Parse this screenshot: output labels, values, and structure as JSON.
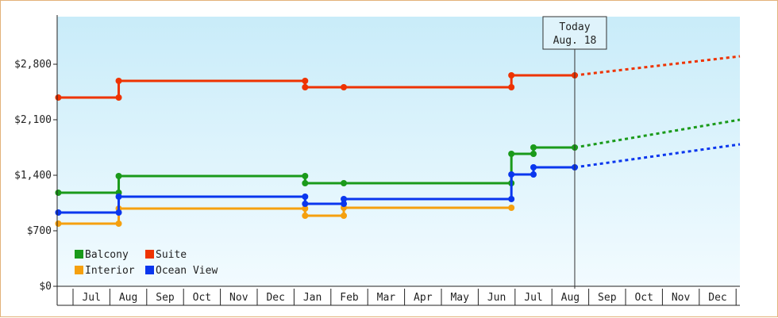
{
  "chart_data": {
    "type": "line",
    "ylim": [
      0,
      3400
    ],
    "y_ticks": [
      {
        "value": 0,
        "label": "$0"
      },
      {
        "value": 700,
        "label": "$700"
      },
      {
        "value": 1400,
        "label": "$1,400"
      },
      {
        "value": 2100,
        "label": "$2,100"
      },
      {
        "value": 2800,
        "label": "$2,800"
      }
    ],
    "month_labels": [
      "Jul",
      "Aug",
      "Sep",
      "Oct",
      "Nov",
      "Dec",
      "Jan",
      "Feb",
      "Mar",
      "Apr",
      "May",
      "Jun",
      "Jul",
      "Aug",
      "Sep",
      "Oct",
      "Nov",
      "Dec"
    ],
    "x_range": [
      0,
      18
    ],
    "today": {
      "x": 13.62,
      "line1": "Today",
      "line2": "Aug. 18"
    },
    "legend": {
      "position": "bottom-left"
    },
    "series": [
      {
        "name": "Balcony",
        "color": "#1a9a1a",
        "points": [
          [
            -0.4,
            1180
          ],
          [
            1.24,
            1180
          ],
          [
            1.24,
            1390
          ],
          [
            6.3,
            1390
          ],
          [
            6.3,
            1300
          ],
          [
            7.35,
            1300
          ],
          [
            11.9,
            1300
          ],
          [
            11.9,
            1670
          ],
          [
            12.5,
            1670
          ],
          [
            12.5,
            1750
          ],
          [
            13.62,
            1750
          ]
        ],
        "markers": [
          [
            -0.4,
            1180
          ],
          [
            1.24,
            1180
          ],
          [
            1.24,
            1390
          ],
          [
            6.3,
            1390
          ],
          [
            6.3,
            1300
          ],
          [
            7.35,
            1300
          ],
          [
            11.9,
            1300
          ],
          [
            11.9,
            1670
          ],
          [
            12.5,
            1670
          ],
          [
            12.5,
            1750
          ],
          [
            13.62,
            1750
          ]
        ],
        "forecast": [
          [
            13.62,
            1750
          ],
          [
            18.5,
            2100
          ]
        ]
      },
      {
        "name": "Suite",
        "color": "#ee3300",
        "points": [
          [
            -0.4,
            2380
          ],
          [
            1.24,
            2380
          ],
          [
            1.24,
            2590
          ],
          [
            6.3,
            2590
          ],
          [
            6.3,
            2510
          ],
          [
            7.35,
            2510
          ],
          [
            11.9,
            2510
          ],
          [
            11.9,
            2660
          ],
          [
            13.62,
            2660
          ]
        ],
        "markers": [
          [
            -0.4,
            2380
          ],
          [
            1.24,
            2380
          ],
          [
            1.24,
            2590
          ],
          [
            6.3,
            2590
          ],
          [
            6.3,
            2510
          ],
          [
            7.35,
            2510
          ],
          [
            11.9,
            2510
          ],
          [
            11.9,
            2660
          ],
          [
            13.62,
            2660
          ]
        ],
        "forecast": [
          [
            13.62,
            2660
          ],
          [
            18.5,
            2900
          ]
        ]
      },
      {
        "name": "Interior",
        "color": "#f5a00f",
        "points": [
          [
            -0.4,
            790
          ],
          [
            1.24,
            790
          ],
          [
            1.24,
            980
          ],
          [
            6.3,
            980
          ],
          [
            6.3,
            890
          ],
          [
            7.35,
            890
          ],
          [
            7.35,
            990
          ],
          [
            11.9,
            990
          ]
        ],
        "markers": [
          [
            -0.4,
            790
          ],
          [
            1.24,
            790
          ],
          [
            1.24,
            980
          ],
          [
            6.3,
            980
          ],
          [
            6.3,
            890
          ],
          [
            7.35,
            890
          ],
          [
            7.35,
            990
          ],
          [
            11.9,
            990
          ]
        ],
        "forecast": []
      },
      {
        "name": "Ocean View",
        "color": "#0a36ee",
        "points": [
          [
            -0.4,
            930
          ],
          [
            1.24,
            930
          ],
          [
            1.24,
            1130
          ],
          [
            6.3,
            1130
          ],
          [
            6.3,
            1040
          ],
          [
            7.35,
            1040
          ],
          [
            7.35,
            1100
          ],
          [
            11.9,
            1100
          ],
          [
            11.9,
            1410
          ],
          [
            12.5,
            1410
          ],
          [
            12.5,
            1500
          ],
          [
            13.62,
            1500
          ]
        ],
        "markers": [
          [
            -0.4,
            930
          ],
          [
            1.24,
            930
          ],
          [
            1.24,
            1130
          ],
          [
            6.3,
            1130
          ],
          [
            6.3,
            1040
          ],
          [
            7.35,
            1040
          ],
          [
            7.35,
            1100
          ],
          [
            11.9,
            1100
          ],
          [
            11.9,
            1410
          ],
          [
            12.5,
            1410
          ],
          [
            12.5,
            1500
          ],
          [
            13.62,
            1500
          ]
        ],
        "forecast": [
          [
            13.62,
            1500
          ],
          [
            18.5,
            1790
          ]
        ]
      }
    ]
  }
}
